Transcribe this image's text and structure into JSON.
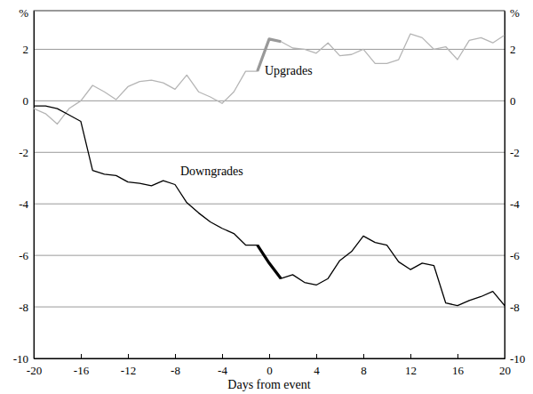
{
  "chart_data": {
    "type": "line",
    "x": [
      -20,
      -19,
      -18,
      -17,
      -16,
      -15,
      -14,
      -13,
      -12,
      -11,
      -10,
      -9,
      -8,
      -7,
      -6,
      -5,
      -4,
      -3,
      -2,
      -1,
      0,
      1,
      2,
      3,
      4,
      5,
      6,
      7,
      8,
      9,
      10,
      11,
      12,
      13,
      14,
      15,
      16,
      17,
      18,
      19,
      20
    ],
    "series": [
      {
        "name": "Upgrades",
        "color": "#b5b5b5",
        "line_style": "solid",
        "values": [
          -0.3,
          -0.5,
          -0.9,
          -0.3,
          0.0,
          0.6,
          0.35,
          0.05,
          0.55,
          0.75,
          0.8,
          0.7,
          0.45,
          1.0,
          0.35,
          0.15,
          -0.1,
          0.35,
          1.15,
          1.15,
          2.4,
          2.3,
          2.05,
          2.0,
          1.85,
          2.25,
          1.75,
          1.8,
          2.0,
          1.45,
          1.45,
          1.6,
          2.6,
          2.45,
          2.0,
          2.1,
          1.6,
          2.35,
          2.45,
          2.25,
          2.55
        ]
      },
      {
        "name": "Downgrades",
        "color": "#000000",
        "line_style": "solid",
        "values": [
          -0.2,
          -0.2,
          -0.3,
          -0.55,
          -0.8,
          -2.7,
          -2.85,
          -2.9,
          -3.15,
          -3.2,
          -3.3,
          -3.1,
          -3.25,
          -3.95,
          -4.35,
          -4.7,
          -4.95,
          -5.15,
          -5.6,
          -5.6,
          -6.3,
          -6.9,
          -6.75,
          -7.05,
          -7.15,
          -6.9,
          -6.2,
          -5.85,
          -5.25,
          -5.5,
          -5.6,
          -6.25,
          -6.55,
          -6.3,
          -6.4,
          -7.85,
          -7.95,
          -7.75,
          -7.6,
          -7.4,
          -7.95
        ]
      },
      {
        "color": "#999999",
        "line_style": "thick",
        "values": [
          null,
          null,
          null,
          null,
          null,
          null,
          null,
          null,
          null,
          null,
          null,
          null,
          null,
          null,
          null,
          null,
          null,
          null,
          null,
          1.15,
          2.4,
          2.3,
          null,
          null,
          null,
          null,
          null,
          null,
          null,
          null,
          null,
          null,
          null,
          null,
          null,
          null,
          null,
          null,
          null,
          null,
          null
        ]
      },
      {
        "color": "#000000",
        "line_style": "thick",
        "values": [
          null,
          null,
          null,
          null,
          null,
          null,
          null,
          null,
          null,
          null,
          null,
          null,
          null,
          null,
          null,
          null,
          null,
          null,
          null,
          -5.6,
          -6.3,
          -6.9,
          null,
          null,
          null,
          null,
          null,
          null,
          null,
          null,
          null,
          null,
          null,
          null,
          null,
          null,
          null,
          null,
          null,
          null,
          null
        ]
      }
    ],
    "xlim": [
      -20,
      20
    ],
    "xticks": [
      -20,
      -16,
      -12,
      -8,
      -4,
      0,
      4,
      8,
      12,
      16,
      20
    ],
    "ylim": [
      -10,
      3.5
    ],
    "yticks": [
      -10,
      -8,
      -6,
      -4,
      -2,
      0,
      2
    ],
    "y_label": "%",
    "x_label": "Days from event",
    "grid": true
  }
}
